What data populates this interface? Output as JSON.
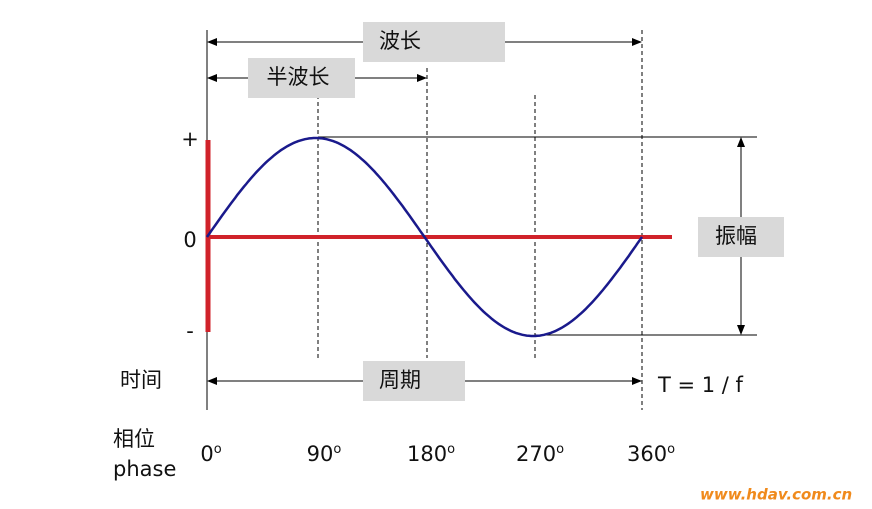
{
  "wavelength": "波长",
  "half_wavelength": "半波长",
  "amplitude": {
    "plus": "+",
    "zero": "0",
    "minus": "-",
    "label": "振幅"
  },
  "time": {
    "label": "时间",
    "period": "周期",
    "formula": "T = 1 / f"
  },
  "phase": {
    "label_cn": "相位",
    "label_en": "phase",
    "ticks": [
      {
        "label": "0",
        "sup": "o"
      },
      {
        "label": "90",
        "sup": "o"
      },
      {
        "label": "180",
        "sup": "o"
      },
      {
        "label": "270",
        "sup": "o"
      },
      {
        "label": "360",
        "sup": "o"
      }
    ]
  },
  "watermark": "www.hdav.com.cn"
}
